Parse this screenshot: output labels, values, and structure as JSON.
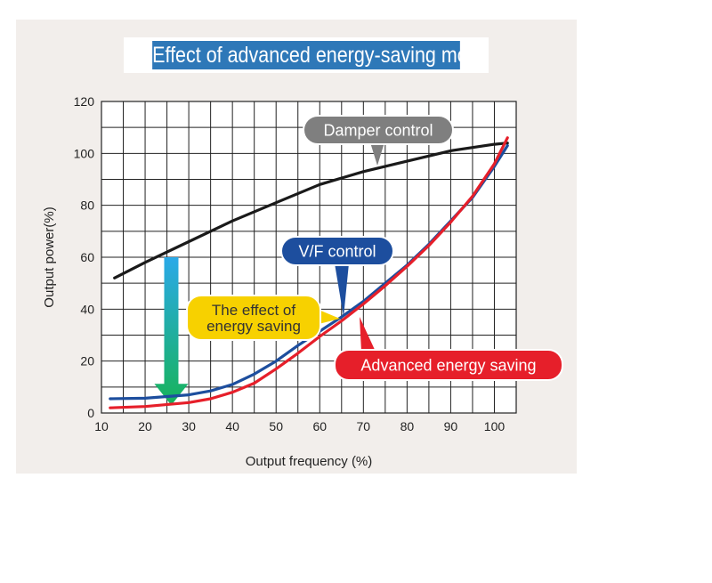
{
  "chart_data": {
    "type": "line",
    "title": "Effect of advanced energy-saving mode",
    "xlabel": "Output frequency (%)",
    "ylabel": "Output power(%)",
    "xlim": [
      10,
      105
    ],
    "ylim": [
      0,
      120
    ],
    "x_ticks": [
      10,
      20,
      30,
      40,
      50,
      60,
      70,
      80,
      90,
      100
    ],
    "y_ticks": [
      0,
      20,
      40,
      60,
      80,
      100,
      120
    ],
    "grid": true,
    "series": [
      {
        "name": "Damper control",
        "color": "#1a1a1a",
        "x": [
          13,
          20,
          30,
          40,
          50,
          60,
          70,
          80,
          90,
          100,
          103
        ],
        "y": [
          52,
          58,
          66,
          74,
          81,
          88,
          93,
          97,
          101,
          103.5,
          104
        ]
      },
      {
        "name": "V/F control",
        "color": "#1d4e9e",
        "x": [
          12,
          20,
          30,
          35,
          40,
          45,
          50,
          55,
          60,
          65,
          70,
          75,
          80,
          85,
          90,
          95,
          100,
          103
        ],
        "y": [
          5.5,
          5.7,
          7,
          8.5,
          11,
          15,
          20,
          26,
          31.5,
          37,
          43,
          50,
          57,
          65,
          74,
          83,
          95,
          103
        ]
      },
      {
        "name": "Advanced energy saving",
        "color": "#e61f2a",
        "x": [
          12,
          20,
          30,
          35,
          40,
          45,
          50,
          55,
          60,
          65,
          70,
          75,
          80,
          85,
          90,
          95,
          100,
          103
        ],
        "y": [
          2,
          2.5,
          4,
          5.5,
          8,
          11.5,
          17,
          23,
          29.5,
          35.5,
          42,
          49,
          56.5,
          64.5,
          73.5,
          83.5,
          96,
          106
        ]
      }
    ],
    "annotations": [
      {
        "text": "Damper control",
        "color": "#7f7f7f"
      },
      {
        "text": "V/F control",
        "color": "#1d4e9e"
      },
      {
        "text": "Advanced energy saving",
        "color": "#e61f2a"
      },
      {
        "text": [
          "The effect of",
          "energy saving"
        ],
        "color": "#f7d100"
      }
    ],
    "effect_arrow": {
      "x": 26,
      "from": 60,
      "to": 3
    }
  }
}
